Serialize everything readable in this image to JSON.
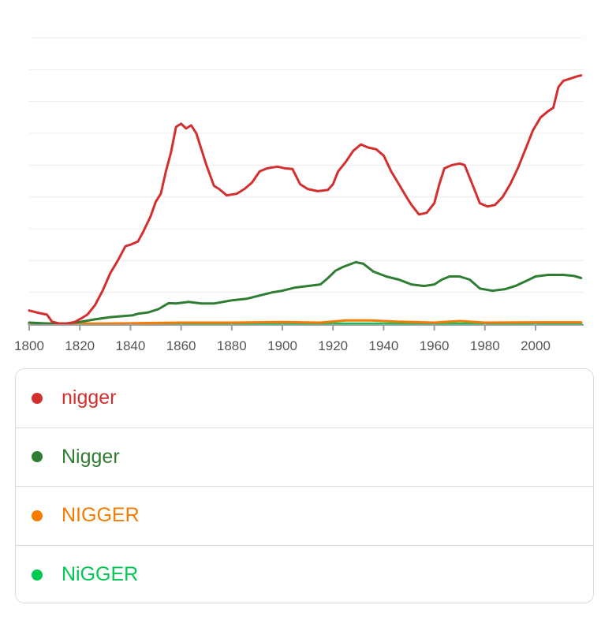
{
  "chart_data": {
    "type": "line",
    "x_ticks": [
      1800,
      1820,
      1840,
      1860,
      1880,
      1900,
      1920,
      1940,
      1960,
      1980,
      2000
    ],
    "xlim": [
      1800,
      2019
    ],
    "ylim": [
      0,
      9
    ],
    "grid": true,
    "legend_position": "bottom",
    "series": [
      {
        "name": "nigger",
        "color": "#d32f2f",
        "points": [
          [
            1800,
            0.43
          ],
          [
            1804,
            0.35
          ],
          [
            1807,
            0.3
          ],
          [
            1809,
            0.08
          ],
          [
            1812,
            0.02
          ],
          [
            1815,
            0.02
          ],
          [
            1818,
            0.07
          ],
          [
            1821,
            0.2
          ],
          [
            1823,
            0.3
          ],
          [
            1826,
            0.6
          ],
          [
            1829,
            1.05
          ],
          [
            1832,
            1.6
          ],
          [
            1835,
            2.0
          ],
          [
            1838,
            2.45
          ],
          [
            1840,
            2.5
          ],
          [
            1843,
            2.6
          ],
          [
            1845,
            2.9
          ],
          [
            1848,
            3.4
          ],
          [
            1850,
            3.85
          ],
          [
            1852,
            4.1
          ],
          [
            1854,
            4.8
          ],
          [
            1856,
            5.4
          ],
          [
            1858,
            6.2
          ],
          [
            1860,
            6.3
          ],
          [
            1862,
            6.15
          ],
          [
            1864,
            6.25
          ],
          [
            1866,
            6.0
          ],
          [
            1868,
            5.5
          ],
          [
            1870,
            5.0
          ],
          [
            1873,
            4.35
          ],
          [
            1875,
            4.25
          ],
          [
            1878,
            4.05
          ],
          [
            1882,
            4.1
          ],
          [
            1885,
            4.25
          ],
          [
            1888,
            4.45
          ],
          [
            1891,
            4.8
          ],
          [
            1894,
            4.9
          ],
          [
            1898,
            4.95
          ],
          [
            1901,
            4.9
          ],
          [
            1904,
            4.88
          ],
          [
            1907,
            4.4
          ],
          [
            1910,
            4.25
          ],
          [
            1914,
            4.18
          ],
          [
            1918,
            4.22
          ],
          [
            1920,
            4.4
          ],
          [
            1922,
            4.8
          ],
          [
            1925,
            5.1
          ],
          [
            1928,
            5.45
          ],
          [
            1931,
            5.65
          ],
          [
            1934,
            5.55
          ],
          [
            1937,
            5.5
          ],
          [
            1940,
            5.3
          ],
          [
            1943,
            4.8
          ],
          [
            1946,
            4.4
          ],
          [
            1949,
            4.0
          ],
          [
            1951,
            3.75
          ],
          [
            1954,
            3.45
          ],
          [
            1957,
            3.5
          ],
          [
            1960,
            3.8
          ],
          [
            1962,
            4.4
          ],
          [
            1964,
            4.9
          ],
          [
            1967,
            5.0
          ],
          [
            1970,
            5.05
          ],
          [
            1972,
            5.0
          ],
          [
            1975,
            4.4
          ],
          [
            1978,
            3.8
          ],
          [
            1981,
            3.7
          ],
          [
            1984,
            3.75
          ],
          [
            1987,
            4.0
          ],
          [
            1990,
            4.4
          ],
          [
            1993,
            4.9
          ],
          [
            1996,
            5.5
          ],
          [
            1999,
            6.1
          ],
          [
            2002,
            6.5
          ],
          [
            2005,
            6.7
          ],
          [
            2007,
            6.8
          ],
          [
            2009,
            7.45
          ],
          [
            2011,
            7.65
          ],
          [
            2013,
            7.7
          ],
          [
            2016,
            7.78
          ],
          [
            2018,
            7.82
          ]
        ]
      },
      {
        "name": "Nigger",
        "color": "#2e7d32",
        "points": [
          [
            1800,
            0.05
          ],
          [
            1808,
            0.02
          ],
          [
            1814,
            0.02
          ],
          [
            1820,
            0.07
          ],
          [
            1826,
            0.15
          ],
          [
            1832,
            0.22
          ],
          [
            1838,
            0.26
          ],
          [
            1841,
            0.28
          ],
          [
            1843,
            0.33
          ],
          [
            1847,
            0.37
          ],
          [
            1851,
            0.47
          ],
          [
            1855,
            0.66
          ],
          [
            1858,
            0.65
          ],
          [
            1863,
            0.7
          ],
          [
            1868,
            0.65
          ],
          [
            1873,
            0.65
          ],
          [
            1880,
            0.75
          ],
          [
            1886,
            0.8
          ],
          [
            1891,
            0.9
          ],
          [
            1896,
            1.0
          ],
          [
            1900,
            1.05
          ],
          [
            1905,
            1.15
          ],
          [
            1910,
            1.2
          ],
          [
            1915,
            1.25
          ],
          [
            1918,
            1.45
          ],
          [
            1921,
            1.68
          ],
          [
            1924,
            1.8
          ],
          [
            1929,
            1.95
          ],
          [
            1932,
            1.9
          ],
          [
            1936,
            1.65
          ],
          [
            1941,
            1.5
          ],
          [
            1946,
            1.4
          ],
          [
            1951,
            1.25
          ],
          [
            1956,
            1.2
          ],
          [
            1960,
            1.25
          ],
          [
            1963,
            1.4
          ],
          [
            1966,
            1.5
          ],
          [
            1970,
            1.5
          ],
          [
            1974,
            1.4
          ],
          [
            1978,
            1.12
          ],
          [
            1983,
            1.05
          ],
          [
            1988,
            1.1
          ],
          [
            1992,
            1.2
          ],
          [
            1996,
            1.35
          ],
          [
            2000,
            1.5
          ],
          [
            2005,
            1.55
          ],
          [
            2011,
            1.55
          ],
          [
            2015,
            1.52
          ],
          [
            2018,
            1.45
          ]
        ]
      },
      {
        "name": "NIGGER",
        "color": "#f57c00",
        "points": [
          [
            1800,
            0.02
          ],
          [
            1830,
            0.02
          ],
          [
            1860,
            0.05
          ],
          [
            1880,
            0.05
          ],
          [
            1900,
            0.07
          ],
          [
            1915,
            0.05
          ],
          [
            1925,
            0.12
          ],
          [
            1935,
            0.12
          ],
          [
            1945,
            0.08
          ],
          [
            1960,
            0.05
          ],
          [
            1970,
            0.1
          ],
          [
            1980,
            0.05
          ],
          [
            2000,
            0.06
          ],
          [
            2018,
            0.06
          ]
        ]
      },
      {
        "name": "NiGGER",
        "color": "#00c853",
        "points": [
          [
            1800,
            0.01
          ],
          [
            2018,
            0.01
          ]
        ]
      }
    ]
  }
}
